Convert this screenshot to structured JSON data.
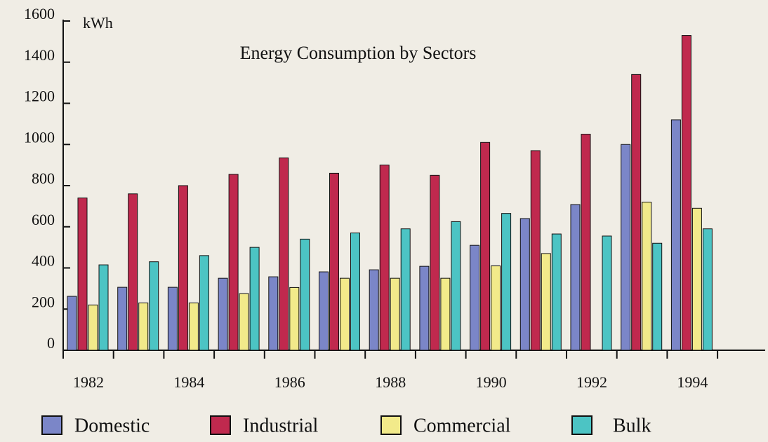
{
  "chart_data": {
    "type": "bar",
    "title": "Energy Consumption by Sectors",
    "y_axis_label": "kWh",
    "categories": [
      "1982",
      null,
      "1984",
      null,
      "1986",
      null,
      "1988",
      null,
      "1990",
      null,
      "1992",
      null,
      "1994"
    ],
    "series": [
      {
        "name": "Domestic",
        "color": "#7b86c8",
        "values": [
          262,
          306,
          306,
          350,
          357,
          381,
          391,
          408,
          510,
          640,
          708,
          1000,
          1120
        ]
      },
      {
        "name": "Industrial",
        "color": "#c0294e",
        "values": [
          740,
          760,
          800,
          855,
          935,
          860,
          900,
          850,
          1010,
          970,
          1050,
          1340,
          1530
        ]
      },
      {
        "name": "Commercial",
        "color": "#f2ea8a",
        "values": [
          220,
          230,
          230,
          275,
          305,
          350,
          350,
          350,
          410,
          470,
          0,
          720,
          690
        ]
      },
      {
        "name": "Bulk",
        "color": "#4cc4c4",
        "values": [
          415,
          430,
          460,
          500,
          540,
          570,
          590,
          625,
          665,
          565,
          555,
          520,
          590
        ]
      }
    ],
    "ylim": [
      0,
      1600
    ],
    "yticks": [
      0,
      200,
      400,
      600,
      800,
      1000,
      1200,
      1400,
      1600
    ]
  }
}
